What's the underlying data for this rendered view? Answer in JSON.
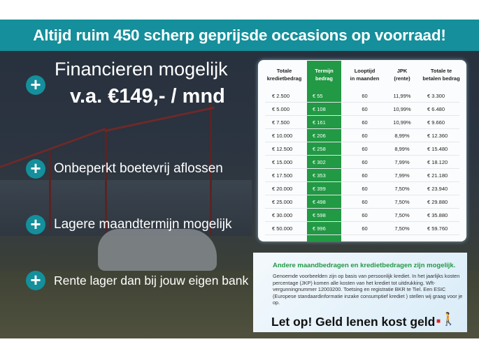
{
  "banner": {
    "title": "Altijd ruim 450 scherp geprijsde occasions op voorraad!",
    "color": "#148f9b"
  },
  "features": {
    "financing_line1": "Financieren mogelijk",
    "financing_line2": "v.a. €149,- / mnd",
    "items": [
      {
        "label": "Onbeperkt boetevrij aflossen"
      },
      {
        "label": "Lagere maandtermijn mogelijk"
      },
      {
        "label": "Rente lager dan bij jouw eigen bank"
      }
    ],
    "icon": "plus-circle-icon"
  },
  "table": {
    "highlight_color": "#229944",
    "headers": [
      {
        "l1": "Totale",
        "l2": "kredietbedrag"
      },
      {
        "l1": "Termijn",
        "l2": "bedrag"
      },
      {
        "l1": "Looptijd",
        "l2": "in maanden"
      },
      {
        "l1": "JPK",
        "l2": "(rente)"
      },
      {
        "l1": "Totale te",
        "l2": "betalen bedrag"
      }
    ],
    "rows": [
      [
        "€ 2.500",
        "€ 55",
        "60",
        "11,99%",
        "€ 3.300"
      ],
      [
        "€ 5.000",
        "€ 108",
        "60",
        "10,99%",
        "€ 6.480"
      ],
      [
        "€ 7.500",
        "€ 161",
        "60",
        "10,99%",
        "€ 9.660"
      ],
      [
        "€ 10.000",
        "€ 206",
        "60",
        "8,99%",
        "€ 12.360"
      ],
      [
        "€ 12.500",
        "€ 258",
        "60",
        "8,99%",
        "€ 15.480"
      ],
      [
        "€ 15.000",
        "€ 302",
        "60",
        "7,99%",
        "€ 18.120"
      ],
      [
        "€ 17.500",
        "€ 353",
        "60",
        "7,99%",
        "€ 21.180"
      ],
      [
        "€ 20.000",
        "€ 399",
        "60",
        "7,50%",
        "€ 23.940"
      ],
      [
        "€ 25.000",
        "€ 498",
        "60",
        "7,50%",
        "€ 29.880"
      ],
      [
        "€ 30.000",
        "€ 598",
        "60",
        "7,50%",
        "€ 35.880"
      ],
      [
        "€ 50.000",
        "€ 996",
        "60",
        "7,50%",
        "€ 59.760"
      ]
    ]
  },
  "info": {
    "heading": "Andere maandbedragen en kredietbedragen zijn mogelijk.",
    "body": "Genoemde voorbeelden zijn op basis van persoonlijk krediet. In het jaarlijks kosten percentage (JKP) komen alle kosten van het krediet tot uitdrukking. Wft-vergunningnummer 12003200. Toetsing en registratie BKR te Tiel. Een ESIC (Europese standaardinformatie inzake consumptief krediet ) stellen wij graag voor je op.",
    "warning": "Let op! Geld lenen kost geld",
    "warning_icon": "running-man-icon"
  }
}
